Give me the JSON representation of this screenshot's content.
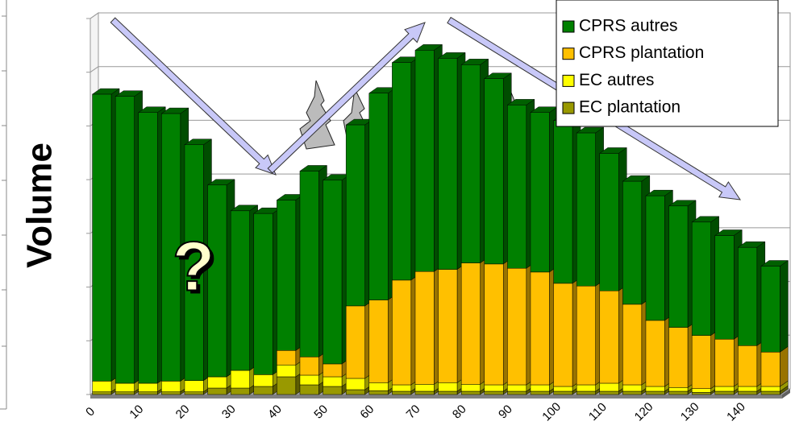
{
  "chart_data": {
    "type": "bar3d_stacked",
    "ylabel": "Volume",
    "annotation": "?",
    "categories": [
      "0",
      null,
      "10",
      null,
      "20",
      null,
      "30",
      null,
      "40",
      null,
      "50",
      null,
      "60",
      null,
      "70",
      null,
      "80",
      null,
      "90",
      null,
      "100",
      null,
      "110",
      null,
      "120",
      null,
      "130",
      null,
      "140",
      null
    ],
    "series": [
      {
        "name": "CPRS autres",
        "color": "#008000",
        "values": [
          5.34,
          5.34,
          5.04,
          4.98,
          4.39,
          3.57,
          2.97,
          3.0,
          2.8,
          3.46,
          3.42,
          3.37,
          3.85,
          4.05,
          4.12,
          3.93,
          3.69,
          3.45,
          3.04,
          2.97,
          3.03,
          2.85,
          2.56,
          2.29,
          2.32,
          2.26,
          2.11,
          1.93,
          1.83,
          1.6
        ]
      },
      {
        "name": "CPRS plantation",
        "color": "#ffc000",
        "values": [
          0,
          0,
          0,
          0,
          0,
          0,
          0,
          0,
          0.27,
          0.34,
          0.24,
          1.35,
          1.54,
          1.95,
          2.1,
          2.11,
          2.26,
          2.25,
          2.17,
          2.1,
          1.92,
          1.84,
          1.72,
          1.5,
          1.23,
          1.12,
          0.99,
          0.88,
          0.76,
          0.64
        ]
      },
      {
        "name": "EC autres",
        "color": "#ffff00",
        "values": [
          0.2,
          0.16,
          0.16,
          0.2,
          0.21,
          0.21,
          0.33,
          0.22,
          0.22,
          0.18,
          0.18,
          0.21,
          0.15,
          0.12,
          0.13,
          0.16,
          0.13,
          0.12,
          0.12,
          0.12,
          0.09,
          0.12,
          0.15,
          0.12,
          0.09,
          0.07,
          0.07,
          0.09,
          0.09,
          0.09
        ]
      },
      {
        "name": "EC plantation",
        "color": "#999900",
        "values": [
          0.05,
          0.05,
          0.05,
          0.05,
          0.05,
          0.12,
          0.12,
          0.15,
          0.33,
          0.18,
          0.15,
          0.09,
          0.07,
          0.06,
          0.06,
          0.06,
          0.06,
          0.06,
          0.06,
          0.06,
          0.06,
          0.06,
          0.06,
          0.06,
          0.06,
          0.06,
          0.04,
          0.06,
          0.06,
          0.06
        ]
      }
    ],
    "ylim": [
      0,
      7
    ],
    "yticks": [
      0,
      1,
      2,
      3,
      4,
      5,
      6,
      7
    ],
    "grid": true,
    "legend": "top-right"
  }
}
